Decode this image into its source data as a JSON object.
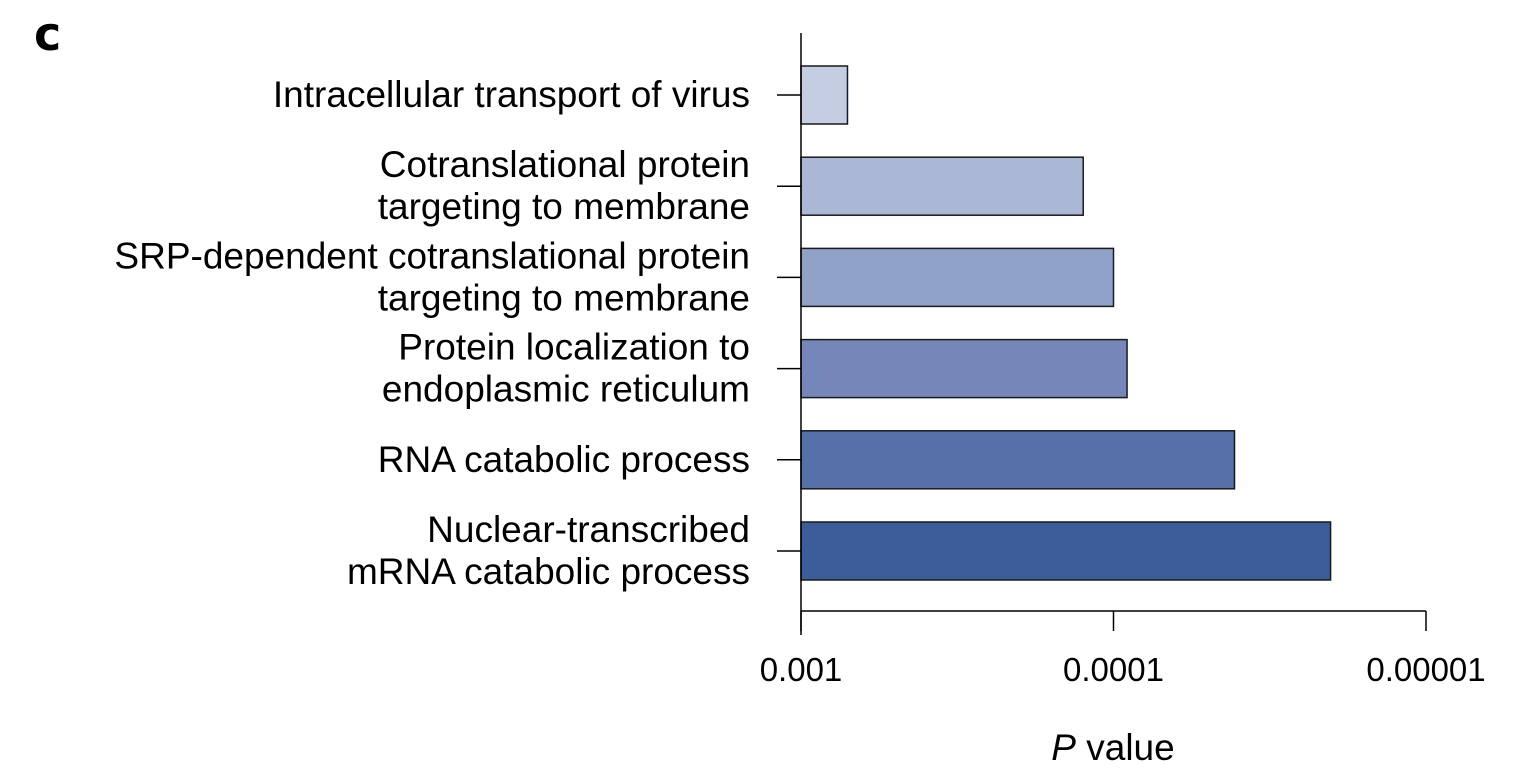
{
  "panel_label": "c",
  "chart_data": {
    "type": "bar",
    "orientation": "horizontal",
    "categories": [
      [
        "Intracellular transport of virus"
      ],
      [
        "Cotranslational protein",
        "targeting to membrane"
      ],
      [
        "SRP-dependent cotranslational protein",
        "targeting to membrane"
      ],
      [
        "Protein localization to",
        "endoplasmic reticulum"
      ],
      [
        "RNA catabolic process"
      ],
      [
        "Nuclear-transcribed",
        "mRNA catabolic process"
      ]
    ],
    "values": [
      0.00071,
      0.000125,
      0.0001,
      9.05e-05,
      4.1e-05,
      2.02e-05
    ],
    "colors": [
      "#c5cde2",
      "#aab7d5",
      "#91a2c9",
      "#7487b8",
      "#5670aa",
      "#3d5c9a"
    ],
    "xscale": "log-reversed",
    "xlim": [
      0.001,
      1e-05
    ],
    "xticks": [
      0.001,
      0.0001,
      1e-05
    ],
    "xtick_labels": [
      "0.001",
      "0.0001",
      "0.00001"
    ],
    "xlabel": {
      "italic": "P",
      "rest": " value"
    },
    "grid": false,
    "legend": "none"
  }
}
